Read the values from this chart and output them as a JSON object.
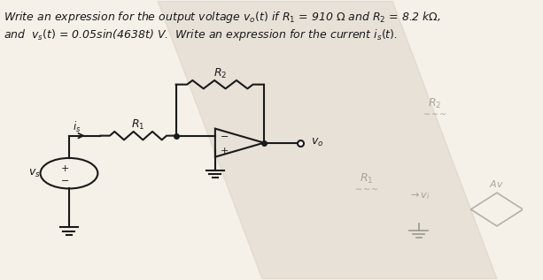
{
  "title_line1": "Write an expression for the output voltage v₀(t) if R₁ = 910 Ω and R₂ = 8.2 kΩ,",
  "title_line2": "and  vₛ(t) = 0.05sin(4638t) V.  Write an expression for the current iₛ(t).",
  "bg_color": "#f0ece0",
  "text_color": "#1a1a1a",
  "fig_width": 6.13,
  "fig_height": 3.17,
  "dpi": 100
}
